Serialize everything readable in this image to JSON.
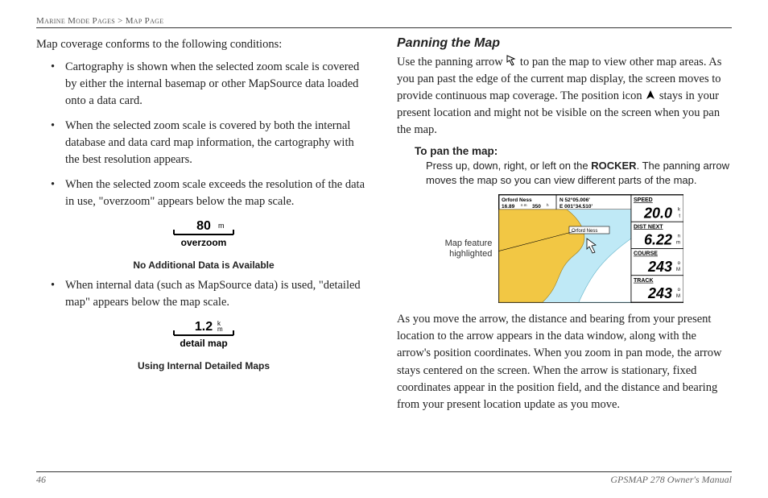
{
  "header": {
    "crumb1": "Marine Mode Pages",
    "sep": ">",
    "crumb2": "Map Page"
  },
  "left": {
    "intro": "Map coverage conforms to the following conditions:",
    "bullets": [
      "Cartography is shown when the selected zoom scale is covered by either the internal basemap or other MapSource data loaded onto a data card.",
      "When the selected zoom scale is covered by both the internal database and data card map information, the cartography with the best resolution appears.",
      "When the selected zoom scale exceeds the resolution of the data in use, \"overzoom\" appears below the map scale."
    ],
    "fig1": {
      "scale_num": "80",
      "scale_unit": "m",
      "scale_sub": "overzoom",
      "caption": "No Additional Data is Available"
    },
    "bullet4": "When internal data (such as MapSource data) is used, \"detailed map\" appears below the map scale.",
    "fig2": {
      "scale_num": "1.2",
      "scale_unit": "k m",
      "scale_sub": "detail map",
      "caption": "Using Internal Detailed Maps"
    }
  },
  "right": {
    "title": "Panning the Map",
    "p1a": "Use the panning arrow ",
    "p1b": " to pan the map to view other map areas. As you pan past the edge of the current map display, the screen moves to provide continuous map coverage. The position icon ",
    "p1c": " stays in your present location and might not be visible on the screen when you pan the map.",
    "subhead": "To pan the map:",
    "subbody_a": "Press up, down, right, or left on the ",
    "subbody_bold": "ROCKER",
    "subbody_b": ". The panning arrow moves the map so you can view different parts of the map.",
    "map_caption_l1": "Map feature",
    "map_caption_l2": "highlighted",
    "map": {
      "topleft_l1": "Orford Ness",
      "topleft_l2": "16.89",
      "topleft_l2b": "350",
      "topright_l1": "N  52°05.006'",
      "topright_l2": "E 001°34.510'",
      "feature": "Orford Ness",
      "fields": [
        {
          "label": "SPEED",
          "value": "20.0",
          "unit_top": "k",
          "unit_bot": "t"
        },
        {
          "label": "DIST NEXT",
          "value": "6.22",
          "unit_top": "n",
          "unit_bot": "m"
        },
        {
          "label": "COURSE",
          "value": "243",
          "unit_top": "o",
          "unit_bot": "M"
        },
        {
          "label": "TRACK",
          "value": "243",
          "unit_top": "o",
          "unit_bot": "M"
        }
      ],
      "colors": {
        "land": "#f2c744",
        "water": "#bfe9f6",
        "deepwater": "#ffffff",
        "border": "#000000"
      }
    },
    "p2": "As you move the arrow, the distance and bearing from your present location to the arrow appears in the data window, along with the arrow's position coordinates. When you zoom in pan mode, the arrow stays centered on the screen. When the arrow is stationary, fixed coordinates appear in the position field, and the distance and bearing from your present location update as you move."
  },
  "footer": {
    "page": "46",
    "manual": "GPSMAP 278 Owner's Manual"
  }
}
